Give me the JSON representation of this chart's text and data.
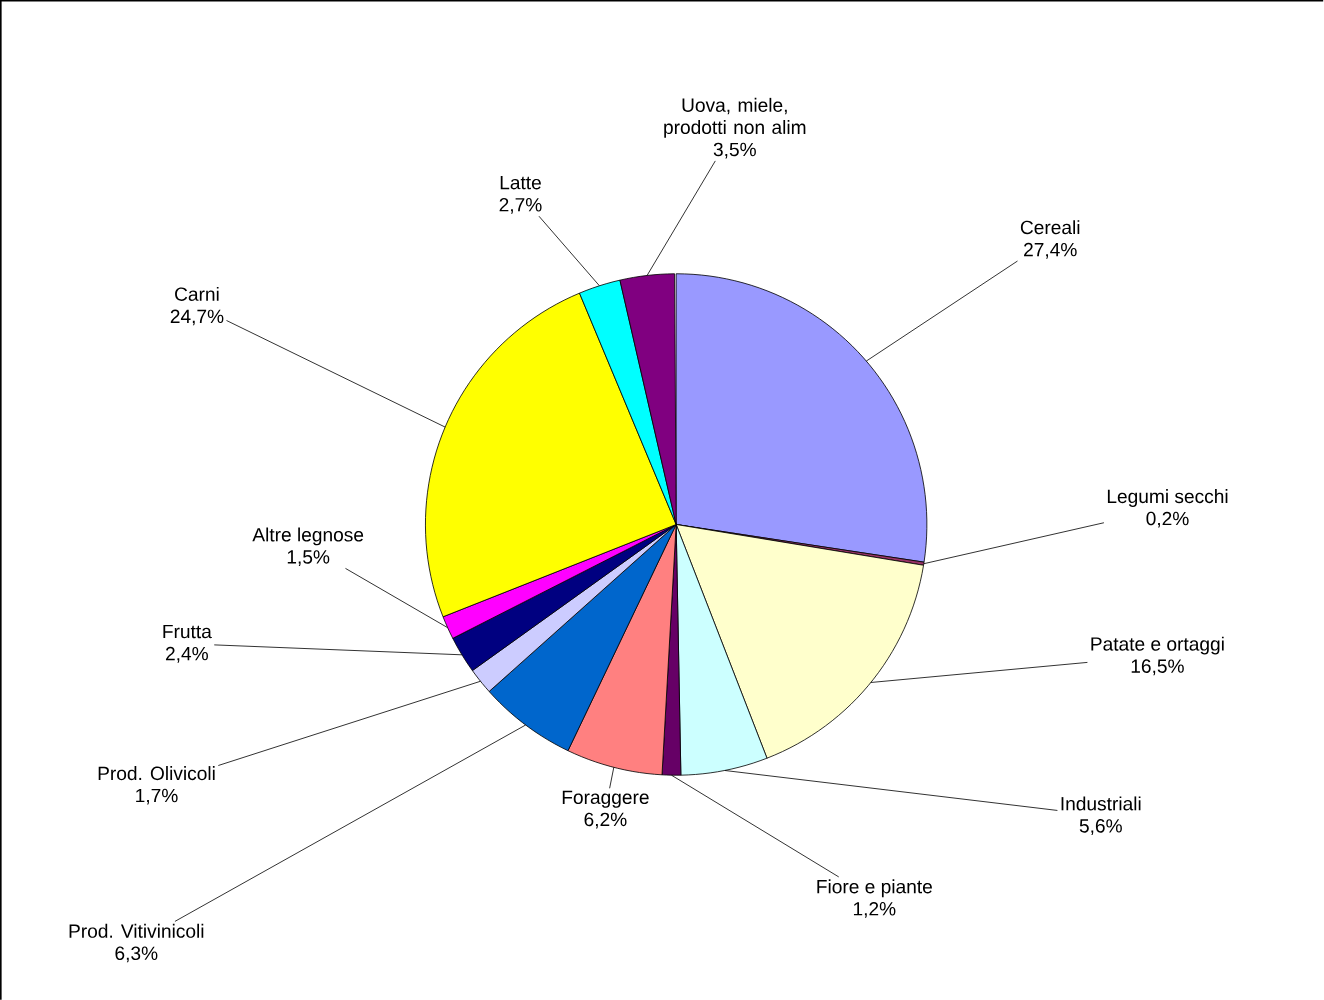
{
  "chart_data": {
    "type": "pie",
    "categories": [
      "Cereali",
      "Legumi secchi",
      "Patate e ortaggi",
      "Industriali",
      "Fiore e piante",
      "Foraggere",
      "Prod. Vitivinicoli",
      "Prod. Olivicoli",
      "Frutta",
      "Altre legnose",
      "Carni",
      "Latte",
      "Uova, miele, prodotti non alim"
    ],
    "values": [
      27.4,
      0.2,
      16.5,
      5.6,
      1.2,
      6.2,
      6.3,
      1.7,
      2.4,
      1.5,
      24.7,
      2.7,
      3.5
    ],
    "value_labels": [
      "27,4%",
      "0,2%",
      "16,5%",
      "5,6%",
      "1,2%",
      "6,2%",
      "6,3%",
      "1,7%",
      "2,4%",
      "1,5%",
      "24,7%",
      "2,7%",
      "3,5%"
    ],
    "colors": [
      "#9999ff",
      "#993366",
      "#ffffcc",
      "#ccffff",
      "#660066",
      "#ff8080",
      "#0066cc",
      "#ccccff",
      "#000080",
      "#ff00ff",
      "#ffff00",
      "#00ffff",
      "#800080"
    ]
  }
}
